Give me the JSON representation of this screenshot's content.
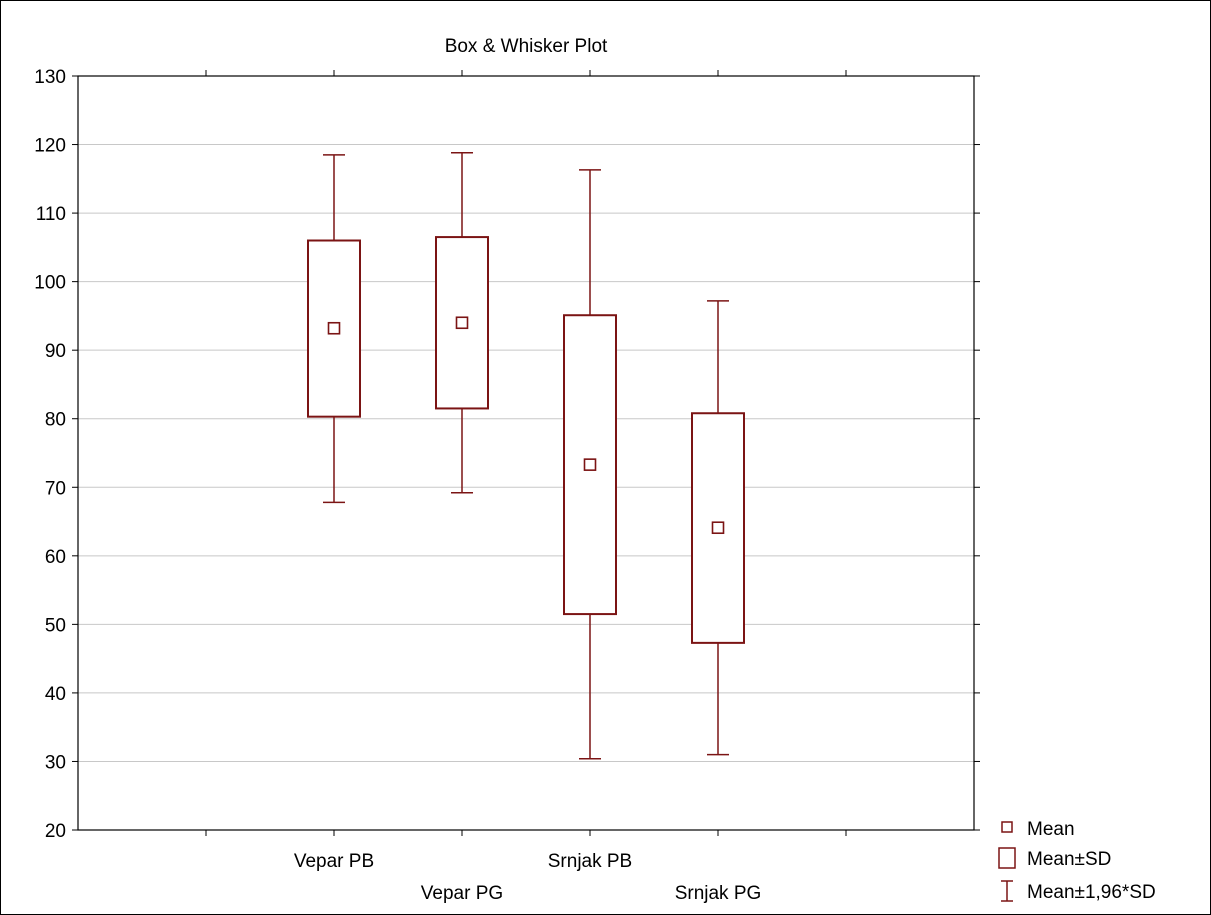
{
  "chart_data": {
    "type": "box",
    "title": "Box & Whisker Plot",
    "xlabel": "",
    "ylabel": "",
    "ylim": [
      20,
      130
    ],
    "yticks": [
      20,
      30,
      40,
      50,
      60,
      70,
      80,
      90,
      100,
      110,
      120,
      130
    ],
    "grid": true,
    "categories": [
      "Vepar PB",
      "Vepar PG",
      "Srnjak PB",
      "Srnjak PG"
    ],
    "groups": [
      {
        "name": "Vepar PB",
        "mean": 93.2,
        "sd_low": 80.3,
        "sd_high": 106.0,
        "whisker_low": 67.8,
        "whisker_high": 118.5
      },
      {
        "name": "Vepar PG",
        "mean": 94.0,
        "sd_low": 81.5,
        "sd_high": 106.5,
        "whisker_low": 69.2,
        "whisker_high": 118.8
      },
      {
        "name": "Srnjak PB",
        "mean": 73.3,
        "sd_low": 51.5,
        "sd_high": 95.1,
        "whisker_low": 30.4,
        "whisker_high": 116.3
      },
      {
        "name": "Srnjak PG",
        "mean": 64.1,
        "sd_low": 47.3,
        "sd_high": 80.8,
        "whisker_low": 31.0,
        "whisker_high": 97.2
      }
    ],
    "legend": {
      "placement": "bottom-right",
      "items": [
        "Mean",
        "Mean±SD",
        "Mean±1,96*SD"
      ]
    },
    "colors": {
      "series": "#7b1414",
      "grid": "#c8c8c8",
      "axis": "#000000"
    }
  }
}
